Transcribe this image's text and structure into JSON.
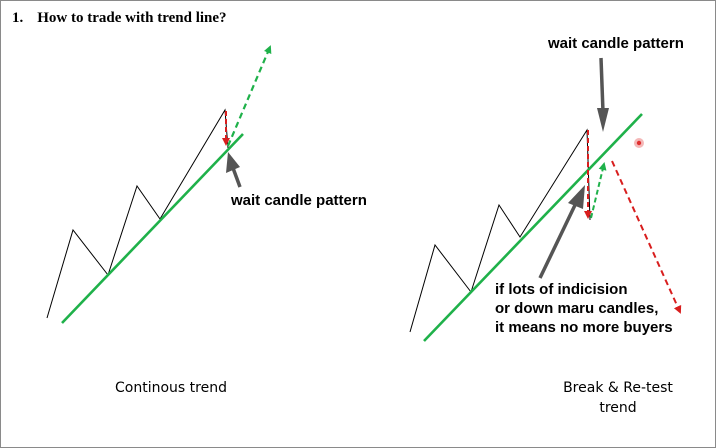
{
  "title": {
    "number": "1.",
    "text": "How to trade with trend line?"
  },
  "left_panel": {
    "annotation": "wait candle pattern",
    "caption": "Continous trend"
  },
  "right_panel": {
    "annotation_top": "wait candle pattern",
    "annotation_bottom": [
      "if lots of indicision",
      "or down maru candles,",
      "it means no more buyers"
    ],
    "caption": [
      "Break & Re-test",
      "trend"
    ]
  },
  "colors": {
    "trend_line": "#1fb14a",
    "up_projection": "#1fb14a",
    "down_arrow": "#d81e1e",
    "price_path": "#000000",
    "pointer_arrow": "#555555",
    "marker": "#e03030"
  },
  "icons": [
    "arrow-pointer-icon",
    "dashed-arrow-icon",
    "record-dot-icon"
  ]
}
